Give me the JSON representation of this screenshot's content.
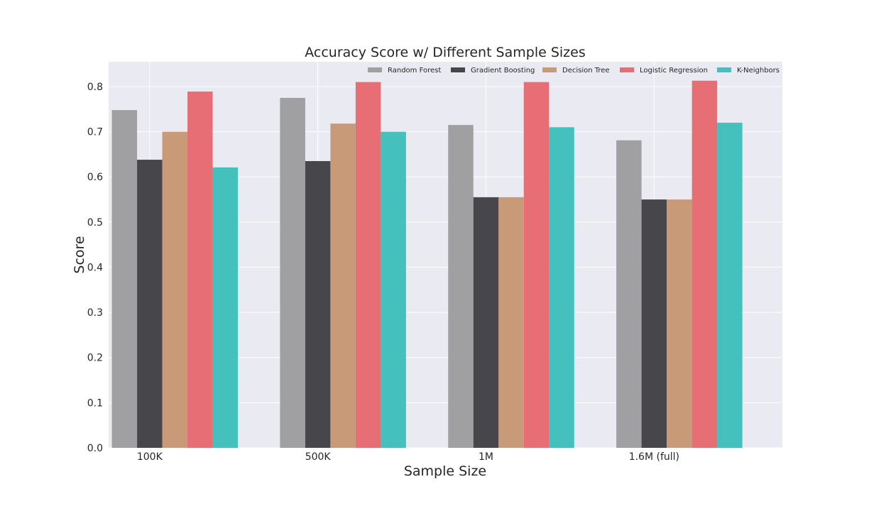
{
  "chart_data": {
    "type": "bar",
    "title": "Accuracy Score w/ Different Sample Sizes",
    "xlabel": "Sample Size",
    "ylabel": "Score",
    "categories": [
      "100K",
      "500K",
      "1M",
      "1.6M (full)"
    ],
    "ylim": [
      0,
      0.855
    ],
    "yticks": [
      0.0,
      0.1,
      0.2,
      0.3,
      0.4,
      0.5,
      0.6,
      0.7,
      0.8
    ],
    "ytick_labels": [
      "0.0",
      "0.1",
      "0.2",
      "0.3",
      "0.4",
      "0.5",
      "0.6",
      "0.7",
      "0.8"
    ],
    "grid": true,
    "legend_position": "top-right",
    "background_color": "#eaeaf2",
    "grid_color": "#ffffff",
    "series": [
      {
        "name": "Random Forest",
        "color": "#a0a0a2",
        "values": [
          0.748,
          0.775,
          0.715,
          0.681
        ]
      },
      {
        "name": "Gradient Boosting",
        "color": "#47464a",
        "values": [
          0.638,
          0.635,
          0.555,
          0.55
        ]
      },
      {
        "name": "Decision Tree",
        "color": "#c89a78",
        "values": [
          0.7,
          0.718,
          0.555,
          0.55
        ]
      },
      {
        "name": "Logistic Regression",
        "color": "#e76e74",
        "values": [
          0.789,
          0.81,
          0.81,
          0.813
        ]
      },
      {
        "name": "K-Neighbors",
        "color": "#44c1bc",
        "values": [
          0.621,
          0.7,
          0.71,
          0.72
        ]
      }
    ]
  }
}
